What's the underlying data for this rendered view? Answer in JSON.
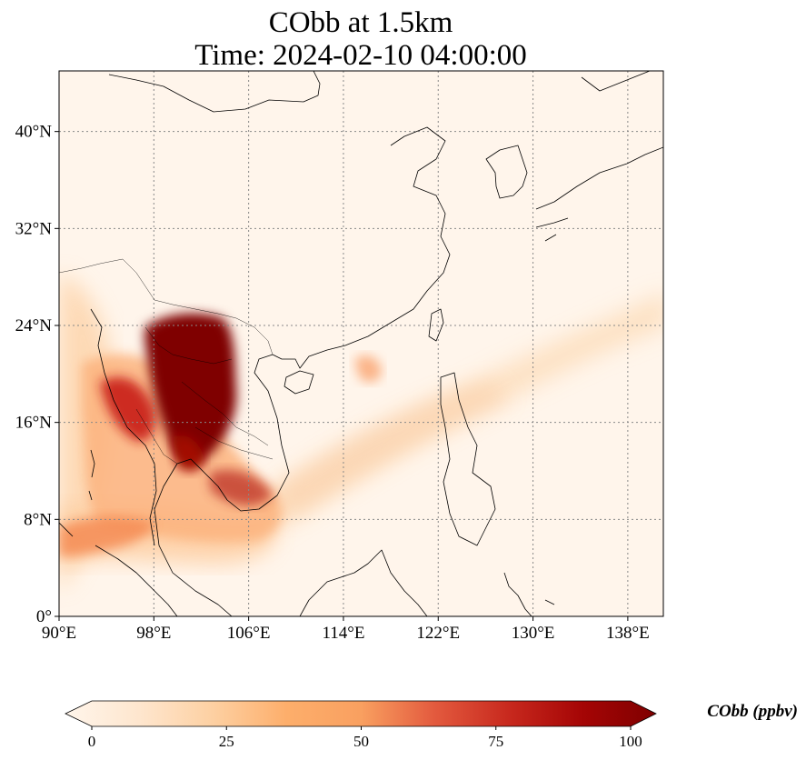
{
  "title_line1": "CObb at 1.5km",
  "title_line2": "Time: 2024-02-10 04:00:00",
  "map": {
    "lon_range": [
      90,
      141
    ],
    "lat_range": [
      0,
      45
    ],
    "lon_ticks": [
      {
        "value": 90,
        "label": "90°E"
      },
      {
        "value": 98,
        "label": "98°E"
      },
      {
        "value": 106,
        "label": "106°E"
      },
      {
        "value": 114,
        "label": "114°E"
      },
      {
        "value": 122,
        "label": "122°E"
      },
      {
        "value": 130,
        "label": "130°E"
      },
      {
        "value": 138,
        "label": "138°E"
      }
    ],
    "lat_ticks": [
      {
        "value": 0,
        "label": "0°"
      },
      {
        "value": 8,
        "label": "8°N"
      },
      {
        "value": 16,
        "label": "16°N"
      },
      {
        "value": 24,
        "label": "24°N"
      },
      {
        "value": 32,
        "label": "32°N"
      },
      {
        "value": 40,
        "label": "40°N"
      }
    ],
    "gridlines": true,
    "background_color": "#fff5eb",
    "coastline_color": "#000000"
  },
  "colorbar": {
    "label": "CObb (ppbv)",
    "min": 0,
    "max": 100,
    "ticks": [
      {
        "value": 0,
        "label": "0"
      },
      {
        "value": 25,
        "label": "25"
      },
      {
        "value": 50,
        "label": "50"
      },
      {
        "value": 75,
        "label": "75"
      },
      {
        "value": 100,
        "label": "100"
      }
    ],
    "colormap": [
      "#fff5eb",
      "#fee6ce",
      "#fdd0a2",
      "#fdae6b",
      "#fd8d3c",
      "#f16913",
      "#d94801",
      "#a63603",
      "#7f0000"
    ],
    "extend": "both"
  }
}
